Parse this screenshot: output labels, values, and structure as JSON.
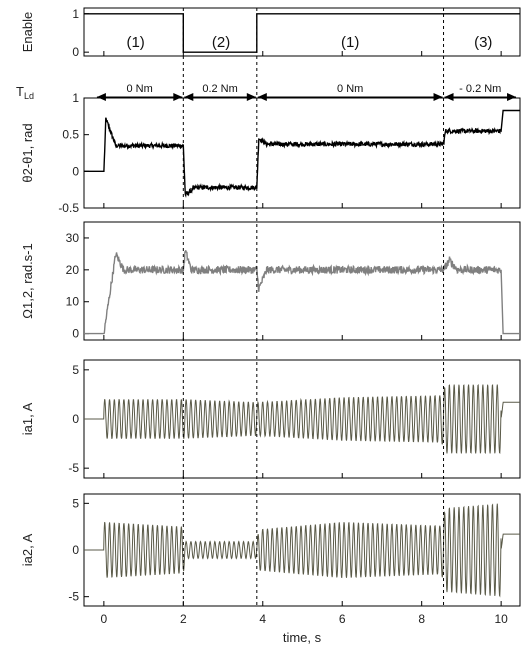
{
  "chart_data": {
    "type": "line",
    "xlabel": "time, s",
    "xlim": [
      -0.5,
      10.5
    ],
    "xticks": [
      0,
      2,
      4,
      6,
      8,
      10
    ],
    "events": [
      2.0,
      3.85,
      8.55
    ],
    "phases": [
      {
        "label": "(1)",
        "x": 0.8
      },
      {
        "label": "(2)",
        "x": 2.95
      },
      {
        "label": "(1)",
        "x": 6.2
      },
      {
        "label": "(3)",
        "x": 9.55
      }
    ],
    "load_torque": {
      "label": "T_Ld",
      "segments": [
        {
          "from": -0.2,
          "to": 2.0,
          "text": "0 Nm"
        },
        {
          "from": 2.0,
          "to": 3.85,
          "text": "0.2 Nm"
        },
        {
          "from": 3.85,
          "to": 8.55,
          "text": "0 Nm"
        },
        {
          "from": 8.55,
          "to": 10.4,
          "text": "- 0.2 Nm"
        }
      ]
    },
    "panels": [
      {
        "id": "enable",
        "ylabel": "Enable",
        "ylim": [
          -0.1,
          1.15
        ],
        "yticks": [
          0,
          1
        ],
        "color": "#000000",
        "kind": "step",
        "points": [
          [
            -0.5,
            1
          ],
          [
            2.0,
            1
          ],
          [
            2.0,
            0
          ],
          [
            3.85,
            0
          ],
          [
            3.85,
            1
          ],
          [
            10.5,
            1
          ]
        ]
      },
      {
        "id": "theta",
        "ylabel": "θ2-θ1, rad",
        "ylim": [
          -0.5,
          1.0
        ],
        "yticks": [
          -0.5,
          0,
          0.5,
          1
        ],
        "color": "#000000",
        "kind": "levels",
        "noise": 0.03,
        "points": [
          [
            -0.5,
            0
          ],
          [
            0.0,
            0
          ],
          [
            0.05,
            0.72
          ],
          [
            0.3,
            0.35
          ],
          [
            2.0,
            0.35
          ],
          [
            2.05,
            -0.32
          ],
          [
            2.3,
            -0.22
          ],
          [
            3.85,
            -0.22
          ],
          [
            3.9,
            0.45
          ],
          [
            4.1,
            0.37
          ],
          [
            8.55,
            0.37
          ],
          [
            8.6,
            0.55
          ],
          [
            10.0,
            0.55
          ],
          [
            10.05,
            0.83
          ],
          [
            10.5,
            0.83
          ]
        ]
      },
      {
        "id": "omega",
        "ylabel": "Ω1,2, rad.s-1",
        "ylim": [
          -2,
          35
        ],
        "yticks": [
          0,
          10,
          20,
          30
        ],
        "color": "#808080",
        "kind": "levels",
        "noise": 1.2,
        "points": [
          [
            -0.5,
            0
          ],
          [
            0.0,
            0
          ],
          [
            0.3,
            25
          ],
          [
            0.5,
            20
          ],
          [
            2.0,
            20
          ],
          [
            2.05,
            26
          ],
          [
            2.2,
            20
          ],
          [
            3.85,
            20
          ],
          [
            3.9,
            14
          ],
          [
            4.1,
            20
          ],
          [
            8.55,
            20
          ],
          [
            8.7,
            23
          ],
          [
            8.9,
            20
          ],
          [
            10.0,
            20
          ],
          [
            10.05,
            0
          ],
          [
            10.5,
            0
          ]
        ]
      },
      {
        "id": "ia1",
        "ylabel": "ia1, A",
        "ylim": [
          -6,
          6
        ],
        "yticks": [
          -5,
          0,
          5
        ],
        "color": "#5a5a48",
        "kind": "oscillation",
        "amplitude": [
          [
            0.0,
            2.0
          ],
          [
            2.0,
            2.0
          ],
          [
            3.85,
            1.7
          ],
          [
            6.0,
            2.2
          ],
          [
            8.5,
            2.4
          ],
          [
            8.6,
            3.5
          ],
          [
            10.0,
            3.5
          ]
        ],
        "base": [
          [
            -0.5,
            0
          ],
          [
            10.0,
            0
          ],
          [
            10.05,
            1.7
          ],
          [
            10.5,
            1.7
          ]
        ]
      },
      {
        "id": "ia2",
        "ylabel": "ia2, A",
        "ylim": [
          -6,
          6
        ],
        "yticks": [
          -5,
          0,
          5
        ],
        "color": "#5a5a48",
        "kind": "oscillation",
        "amplitude": [
          [
            0.0,
            3.0
          ],
          [
            2.0,
            2.5
          ],
          [
            2.05,
            0.9
          ],
          [
            3.85,
            0.9
          ],
          [
            3.9,
            2.2
          ],
          [
            6.0,
            3.0
          ],
          [
            8.5,
            2.6
          ],
          [
            8.6,
            4.5
          ],
          [
            10.0,
            5.0
          ]
        ],
        "base": [
          [
            -0.5,
            0
          ],
          [
            10.0,
            0
          ],
          [
            10.05,
            1.7
          ],
          [
            10.5,
            1.7
          ]
        ]
      }
    ]
  }
}
